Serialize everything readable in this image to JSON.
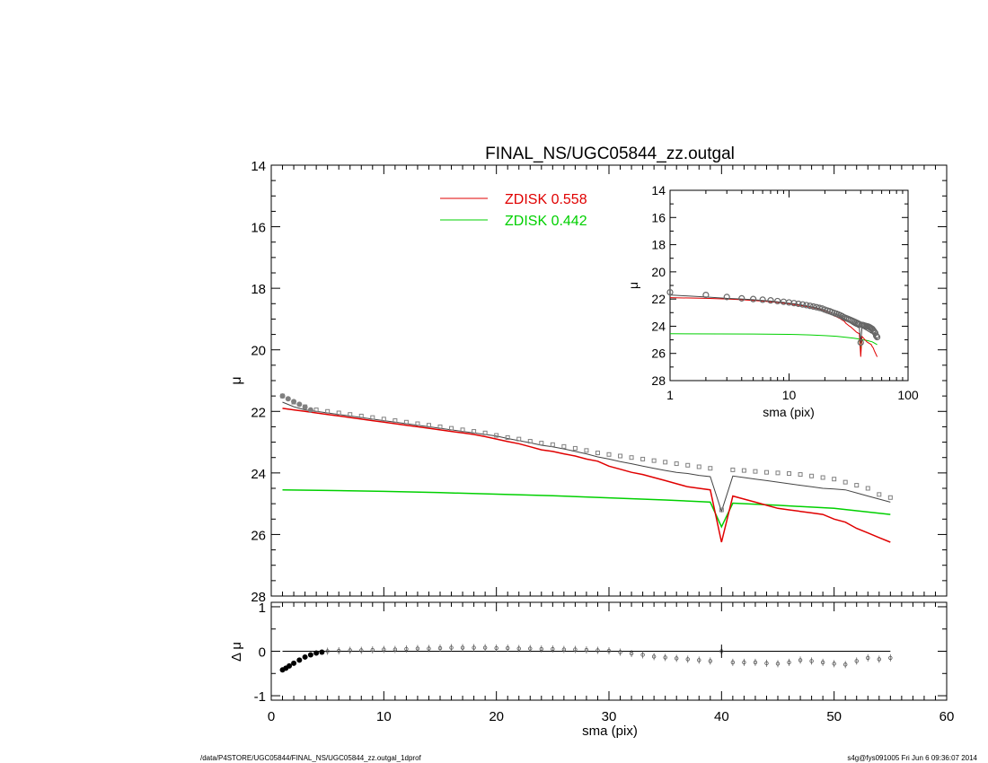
{
  "title": "FINAL_NS/UGC05844_zz.outgal",
  "footer": {
    "path": "/data/P4STORE/UGC05844/FINAL_NS/UGC05844_zz.outgal_1dprof",
    "stamp": "s4g@fys091005  Fri Jun  6 09:36:07 2014"
  },
  "colors": {
    "data": "#808080",
    "model": "#444444",
    "zdisk1": "#e00000",
    "zdisk2": "#00d000"
  },
  "chart_data": [
    {
      "id": "main",
      "type": "scatter",
      "ylabel": "μ",
      "xlim": [
        0,
        60
      ],
      "ylim": [
        28,
        14
      ],
      "yticks": [
        "14",
        "16",
        "18",
        "20",
        "22",
        "24",
        "26",
        "28"
      ],
      "legend": {
        "placement": "top",
        "entries": [
          {
            "label": "ZDISK",
            "value": "0.558",
            "color": "#e00000"
          },
          {
            "label": "ZDISK",
            "value": "0.442",
            "color": "#00d000"
          }
        ]
      },
      "series": [
        {
          "kind": "points",
          "x": [
            1,
            2,
            3,
            4,
            5,
            6,
            7,
            8,
            9,
            10,
            11,
            12,
            13,
            14,
            15,
            16,
            17,
            18,
            19,
            20,
            21,
            22,
            23,
            24,
            25,
            26,
            27,
            28,
            29,
            30,
            31,
            32,
            33,
            34,
            35,
            36,
            37,
            38,
            39,
            40,
            41,
            42,
            43,
            44,
            45,
            46,
            47,
            48,
            49,
            50,
            51,
            52,
            53,
            54,
            55
          ],
          "y": [
            21.5,
            21.7,
            21.85,
            21.95,
            22.0,
            22.05,
            22.1,
            22.15,
            22.2,
            22.25,
            22.3,
            22.35,
            22.4,
            22.45,
            22.5,
            22.55,
            22.6,
            22.65,
            22.7,
            22.78,
            22.85,
            22.9,
            22.97,
            23.03,
            23.08,
            23.14,
            23.2,
            23.27,
            23.35,
            23.4,
            23.45,
            23.5,
            23.55,
            23.6,
            23.65,
            23.7,
            23.75,
            23.8,
            23.85,
            25.2,
            23.9,
            23.92,
            23.95,
            23.98,
            24.0,
            24.02,
            24.05,
            24.1,
            24.15,
            24.2,
            24.3,
            24.4,
            24.5,
            24.7,
            24.8
          ]
        },
        {
          "kind": "model",
          "x": [
            1,
            2,
            3,
            4,
            5,
            6,
            7,
            8,
            9,
            10,
            11,
            12,
            13,
            14,
            15,
            16,
            17,
            18,
            19,
            20,
            21,
            22,
            23,
            24,
            25,
            26,
            27,
            28,
            29,
            30,
            31,
            32,
            33,
            34,
            35,
            36,
            37,
            38,
            39,
            40,
            41,
            42,
            43,
            44,
            45,
            46,
            47,
            48,
            49,
            50,
            51,
            52,
            53,
            54,
            55
          ],
          "y": [
            21.7,
            21.85,
            21.95,
            22.0,
            22.05,
            22.1,
            22.15,
            22.2,
            22.25,
            22.3,
            22.35,
            22.4,
            22.45,
            22.5,
            22.55,
            22.6,
            22.65,
            22.7,
            22.75,
            22.8,
            22.88,
            22.95,
            23.02,
            23.1,
            23.15,
            23.22,
            23.3,
            23.38,
            23.48,
            23.55,
            23.63,
            23.7,
            23.78,
            23.85,
            23.92,
            23.98,
            24.02,
            24.08,
            24.12,
            25.25,
            24.1,
            24.15,
            24.2,
            24.25,
            24.3,
            24.35,
            24.4,
            24.45,
            24.5,
            24.52,
            24.55,
            24.65,
            24.75,
            24.85,
            24.95
          ]
        },
        {
          "name": "ZDISK 0.558",
          "kind": "zdisk1",
          "x": [
            1,
            2,
            3,
            4,
            5,
            6,
            7,
            8,
            9,
            10,
            11,
            12,
            13,
            14,
            15,
            16,
            17,
            18,
            19,
            20,
            21,
            22,
            23,
            24,
            25,
            26,
            27,
            28,
            29,
            30,
            31,
            32,
            33,
            34,
            35,
            36,
            37,
            38,
            39,
            40,
            41,
            42,
            43,
            44,
            45,
            46,
            47,
            48,
            49,
            50,
            51,
            52,
            53,
            54,
            55
          ],
          "y": [
            21.9,
            21.95,
            22.0,
            22.05,
            22.1,
            22.15,
            22.2,
            22.25,
            22.3,
            22.35,
            22.4,
            22.45,
            22.5,
            22.55,
            22.6,
            22.65,
            22.7,
            22.75,
            22.82,
            22.9,
            22.98,
            23.05,
            23.15,
            23.25,
            23.3,
            23.38,
            23.45,
            23.55,
            23.62,
            23.78,
            23.88,
            23.98,
            24.05,
            24.15,
            24.25,
            24.35,
            24.45,
            24.5,
            24.55,
            26.25,
            24.75,
            24.85,
            24.95,
            25.05,
            25.15,
            25.2,
            25.25,
            25.3,
            25.35,
            25.5,
            25.6,
            25.8,
            25.95,
            26.1,
            26.25
          ]
        },
        {
          "name": "ZDISK 0.442",
          "kind": "zdisk2",
          "x": [
            1,
            5,
            10,
            15,
            20,
            25,
            30,
            35,
            38,
            39,
            40,
            41,
            42,
            45,
            50,
            55
          ],
          "y": [
            24.55,
            24.57,
            24.6,
            24.64,
            24.69,
            24.74,
            24.81,
            24.88,
            24.93,
            24.95,
            25.75,
            24.98,
            25.0,
            25.05,
            25.15,
            25.35
          ]
        }
      ]
    },
    {
      "id": "residual",
      "type": "scatter",
      "xlabel": "sma (pix)",
      "ylabel": "Δ μ",
      "xlim": [
        0,
        60
      ],
      "ylim": [
        -1.1,
        1.1
      ],
      "xticks": [
        "0",
        "10",
        "20",
        "30",
        "40",
        "50",
        "60"
      ],
      "yticks": [
        "1",
        "0",
        "-1"
      ],
      "series": [
        {
          "kind": "points",
          "x": [
            1,
            1.3,
            1.6,
            2,
            2.5,
            3,
            3.5,
            4,
            4.5,
            5,
            6,
            7,
            8,
            9,
            10,
            11,
            12,
            13,
            14,
            15,
            16,
            17,
            18,
            19,
            20,
            21,
            22,
            23,
            24,
            25,
            26,
            27,
            28,
            29,
            30,
            31,
            32,
            33,
            34,
            35,
            36,
            37,
            38,
            39,
            40,
            41,
            42,
            43,
            44,
            45,
            46,
            47,
            48,
            49,
            50,
            51,
            52,
            53,
            54,
            55
          ],
          "y": [
            -0.42,
            -0.38,
            -0.33,
            -0.27,
            -0.2,
            -0.13,
            -0.08,
            -0.04,
            -0.02,
            0,
            0.01,
            0.02,
            0.02,
            0.03,
            0.04,
            0.04,
            0.05,
            0.06,
            0.06,
            0.07,
            0.08,
            0.08,
            0.08,
            0.08,
            0.07,
            0.07,
            0.06,
            0.06,
            0.05,
            0.05,
            0.04,
            0.04,
            0.03,
            0.02,
            0.01,
            -0.02,
            -0.05,
            -0.08,
            -0.12,
            -0.14,
            -0.16,
            -0.18,
            -0.2,
            -0.22,
            0,
            -0.25,
            -0.25,
            -0.25,
            -0.27,
            -0.28,
            -0.25,
            -0.2,
            -0.22,
            -0.25,
            -0.28,
            -0.3,
            -0.22,
            -0.15,
            -0.18,
            -0.15
          ]
        }
      ]
    },
    {
      "id": "inset",
      "type": "scatter",
      "xlabel": "sma (pix)",
      "ylabel": "μ",
      "xscale": "log",
      "xlim": [
        1,
        100
      ],
      "ylim": [
        28,
        14
      ],
      "xticks": [
        "1",
        "10",
        "100"
      ],
      "yticks": [
        "14",
        "16",
        "18",
        "20",
        "22",
        "24",
        "26",
        "28"
      ]
    }
  ]
}
